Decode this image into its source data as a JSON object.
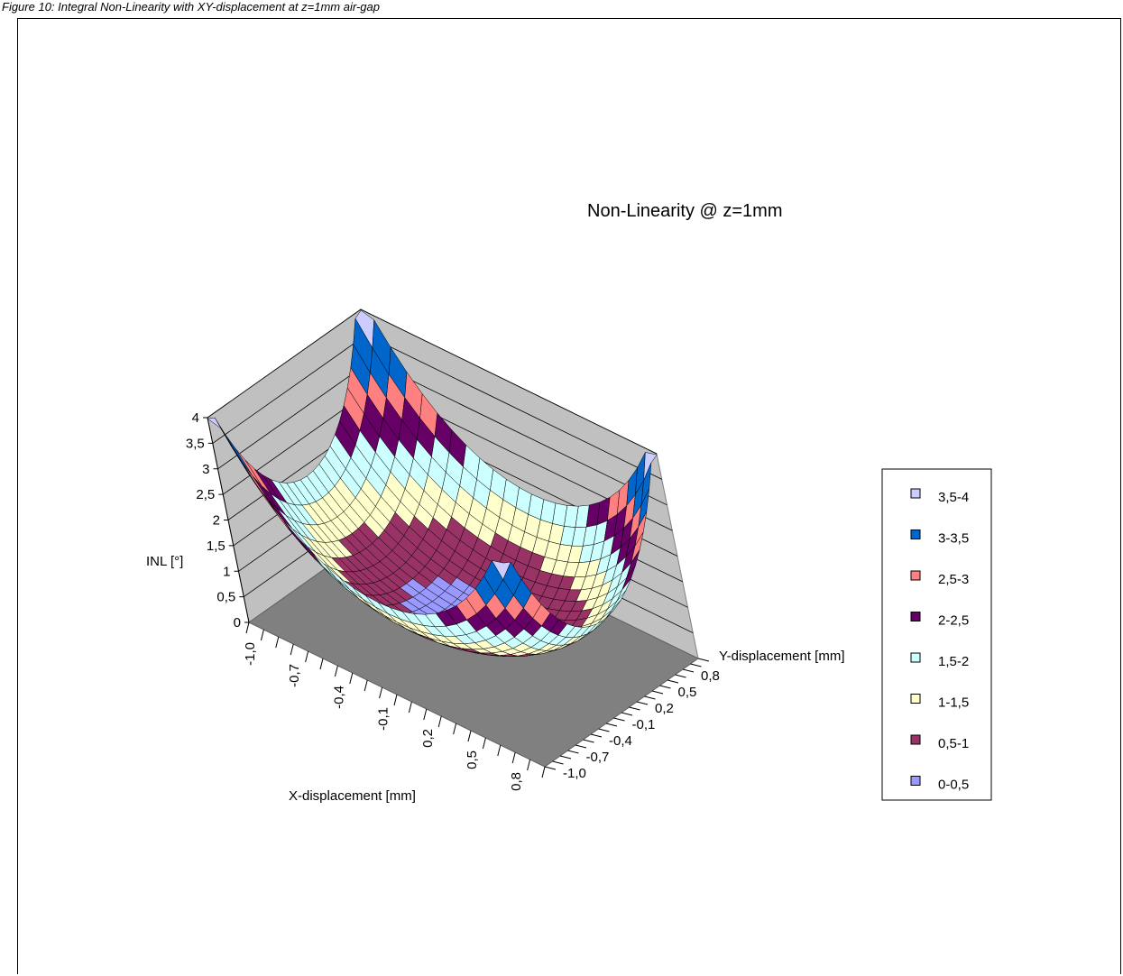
{
  "caption": "Figure 10: Integral Non-Linearity with XY-displacement at z=1mm air-gap",
  "chart_data": {
    "type": "surface3d",
    "title": "Non-Linearity @ z=1mm",
    "xlabel": "X-displacement [mm]",
    "ylabel": "Y-displacement [mm]",
    "zlabel": "INL [°]",
    "x_tick_labels": [
      "-1,0",
      "-0,7",
      "-0,4",
      "-0,1",
      "0,2",
      "0,5",
      "0,8"
    ],
    "y_tick_labels": [
      "-1,0",
      "-0,7",
      "-0,4",
      "-0,1",
      "0,2",
      "0,5",
      "0,8"
    ],
    "z_tick_labels": [
      "0",
      "0,5",
      "1",
      "1,5",
      "2",
      "2,5",
      "3",
      "3,5",
      "4"
    ],
    "zlim": [
      0,
      4
    ],
    "xlim": [
      -1.0,
      1.0
    ],
    "ylim": [
      -1.0,
      1.0
    ],
    "surface_summary": "bowl-shaped surface with minimum ~0.5 near x=-0.1,y=0.2 rising to ~4 at the corners",
    "legend": {
      "placement": "right",
      "entries": [
        {
          "label": "3,5-4",
          "color": "#ccccff"
        },
        {
          "label": "3-3,5",
          "color": "#0066cc"
        },
        {
          "label": "2,5-3",
          "color": "#ff8080"
        },
        {
          "label": "2-2,5",
          "color": "#660066"
        },
        {
          "label": "1,5-2",
          "color": "#ccffff"
        },
        {
          "label": "1-1,5",
          "color": "#ffffcc"
        },
        {
          "label": "0,5-1",
          "color": "#993366"
        },
        {
          "label": "0-0,5",
          "color": "#9999ff"
        }
      ]
    }
  }
}
